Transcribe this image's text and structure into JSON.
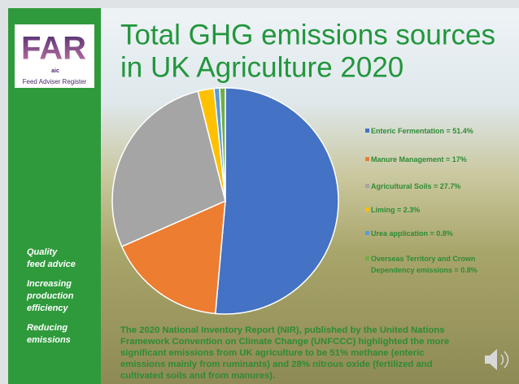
{
  "logo": {
    "mark": "FAR",
    "sub": "aic",
    "caption": "Feed Adviser Register"
  },
  "sidebar": {
    "items": [
      [
        "Quality",
        "feed advice"
      ],
      [
        "Increasing",
        "production",
        "efficiency"
      ],
      [
        "Reducing",
        "emissions"
      ]
    ]
  },
  "chart_data": {
    "type": "pie",
    "title_lines": [
      "Total GHG emissions sources",
      "in UK Agriculture 2020"
    ],
    "categories": [
      "Enteric Fermentation = 51.4%",
      "Manure Management = 17%",
      "Agricultural Soils = 27.7%",
      "Liming = 2.3%",
      "Urea application = 0.8%",
      "Overseas Territory and Crown Dependency emissions = 0.8%"
    ],
    "values": [
      51.4,
      17,
      27.7,
      2.3,
      0.8,
      0.8
    ],
    "colors": [
      "#4472c4",
      "#ed7d31",
      "#a5a5a5",
      "#ffc000",
      "#5b9bd5",
      "#70ad47"
    ]
  },
  "note": {
    "lines": [
      "The 2020 National Inventory Report (NIR), published by the United Nations",
      "Framework Convention on Climate Change (UNFCCC) highlighted the more",
      "significant emissions from UK agriculture to be 51%  methane (enteric",
      "emissions mainly from ruminants) and 28% nitrous oxide (fertilized and",
      "cultivated soils and from manures)."
    ]
  }
}
